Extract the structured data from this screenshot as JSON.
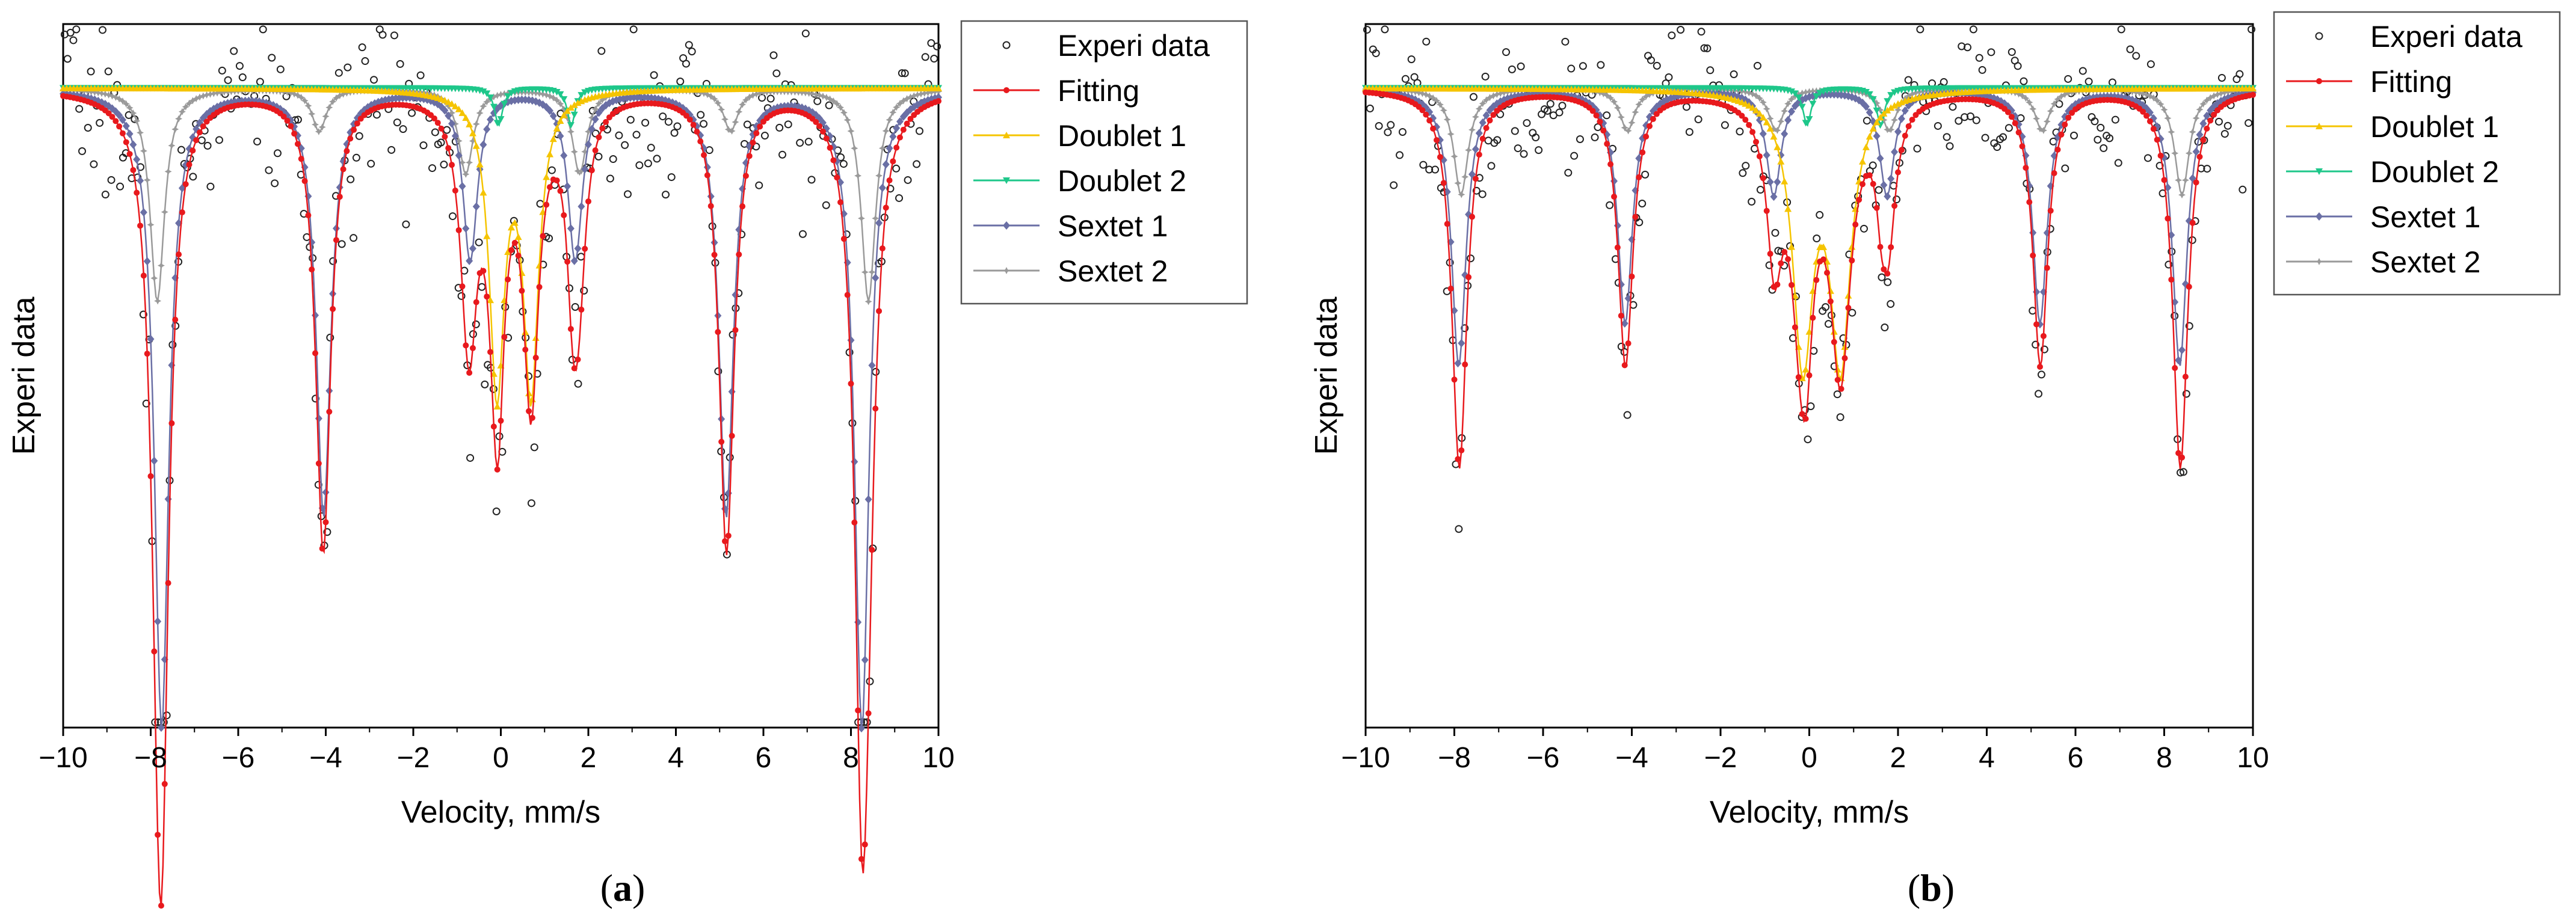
{
  "colors": {
    "experi": "#222222",
    "fitting": "#e8191d",
    "doublet1": "#f5c400",
    "doublet2": "#1ec78a",
    "sextet1": "#6a6fa5",
    "sextet2": "#9a9a9a",
    "axis": "#000000"
  },
  "chart_data": [
    {
      "type": "line",
      "panel_label": "(a)",
      "caption_prefix": "(",
      "caption_letter": "a",
      "caption_suffix": ")",
      "xlabel": "Velocity, mm/s",
      "ylabel": "Experi data",
      "xlim": [
        -10,
        10
      ],
      "ylim": [
        0.4,
        1.06
      ],
      "xticks": [
        -10,
        -8,
        -6,
        -4,
        -2,
        0,
        2,
        4,
        6,
        8,
        10
      ],
      "xtick_labels": [
        "−10",
        "−8",
        "−6",
        "−4",
        "−2",
        "0",
        "2",
        "4",
        "6",
        "8",
        "10"
      ],
      "legend_position": "top-right, outside plot",
      "legend": [
        "Experi data",
        "Fitting",
        "Doublet 1",
        "Doublet 2",
        "Sextet 1",
        "Sextet 2"
      ],
      "series": [
        {
          "name": "Doublet 1",
          "kind": "doublet",
          "center": 0.3,
          "split": 0.78,
          "depth": 0.28,
          "width": 0.42
        },
        {
          "name": "Doublet 2",
          "kind": "doublet",
          "center": 0.78,
          "split": 1.66,
          "depth": 0.035,
          "width": 0.22
        },
        {
          "name": "Sextet 1",
          "kind": "sextet",
          "positions": [
            -7.75,
            -4.05,
            -0.7,
            1.7,
            5.15,
            8.25
          ],
          "depths": [
            0.6,
            0.4,
            0.16,
            0.16,
            0.4,
            0.6
          ],
          "width": 0.4
        },
        {
          "name": "Sextet 2",
          "kind": "sextet",
          "positions": [
            -7.85,
            -4.15,
            -0.8,
            1.8,
            5.25,
            8.4
          ],
          "depths": [
            0.2,
            0.04,
            0.08,
            0.08,
            0.04,
            0.2
          ],
          "width": 0.4
        },
        {
          "name": "Fitting",
          "kind": "sum"
        },
        {
          "name": "Experi data",
          "kind": "scatter",
          "noise": 0.04,
          "n_points": 300,
          "seed": 7
        }
      ]
    },
    {
      "type": "line",
      "panel_label": "(b)",
      "caption_prefix": "(",
      "caption_letter": "b",
      "caption_suffix": ")",
      "xlabel": "Velocity, mm/s",
      "ylabel": "Experi data",
      "xlim": [
        -10,
        10
      ],
      "ylim": [
        0.4,
        1.06
      ],
      "xticks": [
        -10,
        -8,
        -6,
        -4,
        -2,
        0,
        2,
        4,
        6,
        8,
        10
      ],
      "xtick_labels": [
        "−10",
        "−8",
        "−6",
        "−4",
        "−2",
        "0",
        "2",
        "4",
        "6",
        "8",
        "10"
      ],
      "legend_position": "top-right, outside plot",
      "legend": [
        "Experi data",
        "Fitting",
        "Doublet 1",
        "Doublet 2",
        "Sextet 1",
        "Sextet 2"
      ],
      "series": [
        {
          "name": "Doublet 1",
          "kind": "doublet",
          "center": 0.28,
          "split": 0.85,
          "depth": 0.25,
          "width": 0.55
        },
        {
          "name": "Doublet 2",
          "kind": "doublet",
          "center": 0.78,
          "split": 1.66,
          "depth": 0.035,
          "width": 0.22
        },
        {
          "name": "Sextet 1",
          "kind": "sextet",
          "positions": [
            -7.9,
            -4.15,
            -0.8,
            1.75,
            5.2,
            8.35
          ],
          "depths": [
            0.26,
            0.22,
            0.1,
            0.1,
            0.22,
            0.26
          ],
          "width": 0.4
        },
        {
          "name": "Sextet 2",
          "kind": "sextet",
          "positions": [
            -7.85,
            -4.1,
            -0.75,
            1.8,
            5.25,
            8.4
          ],
          "depths": [
            0.1,
            0.04,
            0.04,
            0.04,
            0.04,
            0.1
          ],
          "width": 0.4
        },
        {
          "name": "Fitting",
          "kind": "sum"
        },
        {
          "name": "Experi data",
          "kind": "scatter",
          "noise": 0.035,
          "n_points": 300,
          "seed": 19
        }
      ]
    }
  ]
}
